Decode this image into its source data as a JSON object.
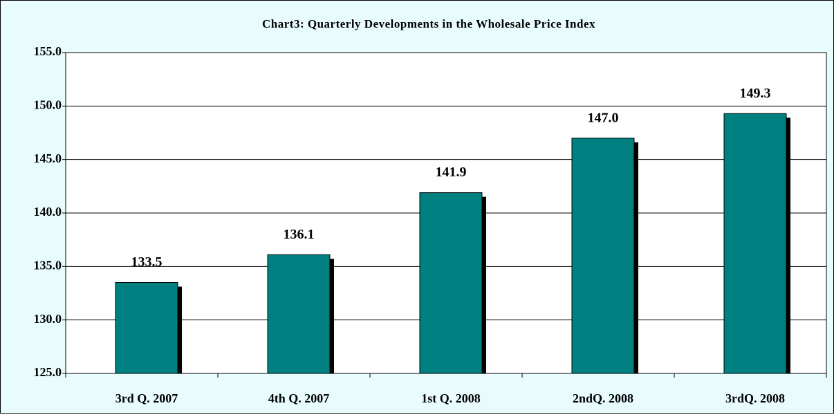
{
  "chart_data": {
    "type": "bar",
    "title": "Chart3: Quarterly Developments in the Wholesale Price Index",
    "categories": [
      "3rd Q. 2007",
      "4th Q. 2007",
      "1st Q. 2008",
      "2ndQ. 2008",
      "3rdQ. 2008"
    ],
    "values": [
      133.5,
      136.1,
      141.9,
      147.0,
      149.3
    ],
    "value_labels": [
      "133.5",
      "136.1",
      "141.9",
      "147.0",
      "149.3"
    ],
    "color": "#008080",
    "ylim": [
      125,
      155
    ],
    "yticks": [
      {
        "value": 125,
        "label": "125.0"
      },
      {
        "value": 130,
        "label": "130.0"
      },
      {
        "value": 135,
        "label": "135.0"
      },
      {
        "value": 140,
        "label": "140.0"
      },
      {
        "value": 145,
        "label": "145.0"
      },
      {
        "value": 150,
        "label": "150.0"
      },
      {
        "value": 155,
        "label": "155.0"
      }
    ],
    "grid": true
  }
}
